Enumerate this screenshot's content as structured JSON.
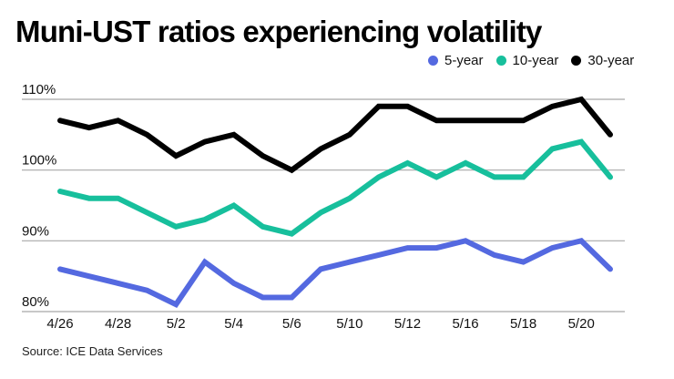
{
  "chart_data": {
    "type": "line",
    "title": "Muni-UST ratios experiencing volatility",
    "source": "Source: ICE Data Services",
    "xlabel": "",
    "ylabel": "",
    "ylim": [
      80,
      110
    ],
    "y_ticks": [
      80,
      90,
      100,
      110
    ],
    "y_tick_labels": [
      "80%",
      "90%",
      "100%",
      "110%"
    ],
    "grid": true,
    "legend_position": "top-right",
    "x_tick_labels": [
      {
        "index": 0,
        "label": "4/26"
      },
      {
        "index": 2,
        "label": "4/28"
      },
      {
        "index": 4,
        "label": "5/2"
      },
      {
        "index": 6,
        "label": "5/4"
      },
      {
        "index": 8,
        "label": "5/6"
      },
      {
        "index": 10,
        "label": "5/10"
      },
      {
        "index": 12,
        "label": "5/12"
      },
      {
        "index": 14,
        "label": "5/16"
      },
      {
        "index": 16,
        "label": "5/18"
      },
      {
        "index": 18,
        "label": "5/20"
      }
    ],
    "num_points": 20,
    "series": [
      {
        "name": "5-year",
        "color": "#5469e0",
        "values": [
          86,
          85,
          84,
          83,
          81,
          87,
          84,
          82,
          82,
          86,
          87,
          88,
          89,
          89,
          90,
          88,
          87,
          89,
          90,
          86
        ]
      },
      {
        "name": "10-year",
        "color": "#17bf9c",
        "values": [
          97,
          96,
          96,
          94,
          92,
          93,
          95,
          92,
          91,
          94,
          96,
          99,
          101,
          99,
          101,
          99,
          99,
          103,
          104,
          99
        ]
      },
      {
        "name": "30-year",
        "color": "#000000",
        "values": [
          107,
          106,
          107,
          105,
          102,
          104,
          105,
          102,
          100,
          103,
          105,
          109,
          109,
          107,
          107,
          107,
          107,
          109,
          110,
          105
        ]
      }
    ]
  }
}
